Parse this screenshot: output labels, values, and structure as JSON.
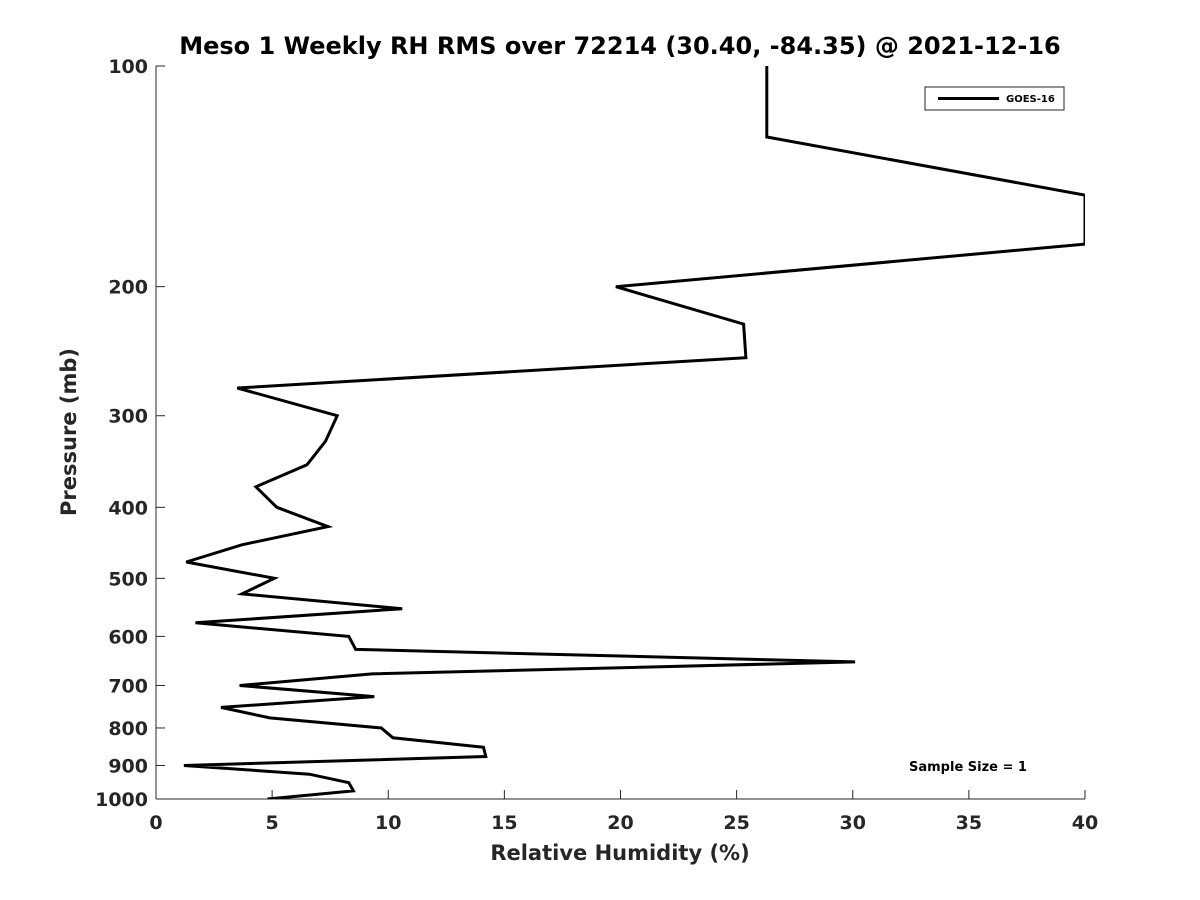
{
  "chart_data": {
    "type": "line",
    "title": "Meso 1 Weekly RH RMS over 72214 (30.40, -84.35) @ 2021-12-16",
    "xlabel": "Relative Humidity (%)",
    "ylabel": "Pressure (mb)",
    "xlim": [
      0,
      40
    ],
    "ylim": [
      100,
      1000
    ],
    "y_scale": "log",
    "y_reversed": true,
    "x_ticks": [
      0,
      5,
      10,
      15,
      20,
      25,
      30,
      35,
      40
    ],
    "y_ticks": [
      100,
      200,
      300,
      400,
      500,
      600,
      700,
      800,
      900,
      1000
    ],
    "grid": false,
    "legend_position": "top-right",
    "annotation": "Sample Size = 1",
    "series": [
      {
        "name": "GOES-16",
        "color": "#000000",
        "points": [
          [
            4.8,
            1000
          ],
          [
            8.5,
            975
          ],
          [
            8.3,
            950
          ],
          [
            6.6,
            925
          ],
          [
            1.2,
            900
          ],
          [
            14.2,
            875
          ],
          [
            14.1,
            850
          ],
          [
            10.2,
            825
          ],
          [
            9.7,
            800
          ],
          [
            4.9,
            775
          ],
          [
            2.8,
            750
          ],
          [
            9.4,
            725
          ],
          [
            3.6,
            700
          ],
          [
            9.3,
            675
          ],
          [
            30.1,
            650
          ],
          [
            8.6,
            625
          ],
          [
            8.3,
            600
          ],
          [
            1.7,
            575
          ],
          [
            10.6,
            550
          ],
          [
            3.7,
            525
          ],
          [
            5.1,
            500
          ],
          [
            1.3,
            475
          ],
          [
            3.7,
            450
          ],
          [
            7.4,
            425
          ],
          [
            5.2,
            400
          ],
          [
            4.3,
            375
          ],
          [
            6.5,
            350
          ],
          [
            7.3,
            325
          ],
          [
            7.8,
            300
          ],
          [
            3.5,
            275
          ],
          [
            25.4,
            250
          ],
          [
            25.3,
            225
          ],
          [
            19.8,
            200
          ],
          [
            40.0,
            175
          ],
          [
            40.0,
            150
          ],
          [
            26.3,
            125
          ],
          [
            26.3,
            100
          ]
        ]
      }
    ]
  }
}
